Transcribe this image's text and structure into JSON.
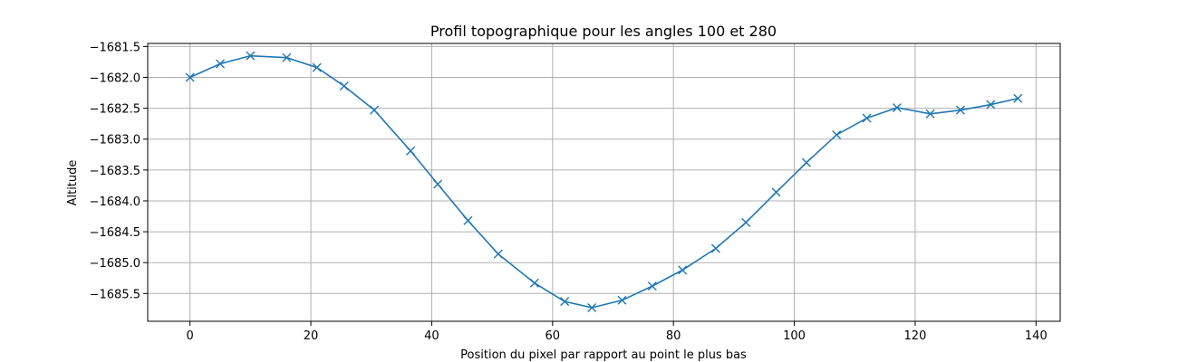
{
  "chart_data": {
    "type": "line",
    "title": "Profil topographique pour les angles 100 et 280",
    "xlabel": "Position du pixel par rapport au point le plus bas",
    "ylabel": "Altitude",
    "xlim": [
      -7,
      144
    ],
    "ylim": [
      -1685.95,
      -1681.45
    ],
    "xticks": [
      0,
      20,
      40,
      60,
      80,
      100,
      120,
      140
    ],
    "xtick_labels": [
      "0",
      "20",
      "40",
      "60",
      "80",
      "100",
      "120",
      "140"
    ],
    "yticks": [
      -1681.5,
      -1682.0,
      -1682.5,
      -1683.0,
      -1683.5,
      -1684.0,
      -1684.5,
      -1685.0,
      -1685.5
    ],
    "ytick_labels": [
      "−1681.5",
      "−1682.0",
      "−1682.5",
      "−1683.0",
      "−1683.5",
      "−1684.0",
      "−1684.5",
      "−1685.0",
      "−1685.5"
    ],
    "grid": true,
    "color": "#1f77b4",
    "marker": "x",
    "series": [
      {
        "x": [
          0,
          5,
          10,
          16,
          21,
          25.5,
          30.5,
          36.5,
          41,
          46,
          51,
          57,
          62,
          66.5,
          71.5,
          76.5,
          81.5,
          87,
          92,
          97,
          102,
          107,
          112,
          117,
          122.5,
          127.5,
          132.5,
          137
        ],
        "y": [
          -1682.0,
          -1681.78,
          -1681.65,
          -1681.68,
          -1681.84,
          -1682.14,
          -1682.53,
          -1683.19,
          -1683.73,
          -1684.32,
          -1684.86,
          -1685.33,
          -1685.63,
          -1685.73,
          -1685.61,
          -1685.38,
          -1685.12,
          -1684.77,
          -1684.35,
          -1683.86,
          -1683.38,
          -1682.93,
          -1682.66,
          -1682.49,
          -1682.59,
          -1682.53,
          -1682.44,
          -1682.34
        ]
      }
    ]
  }
}
